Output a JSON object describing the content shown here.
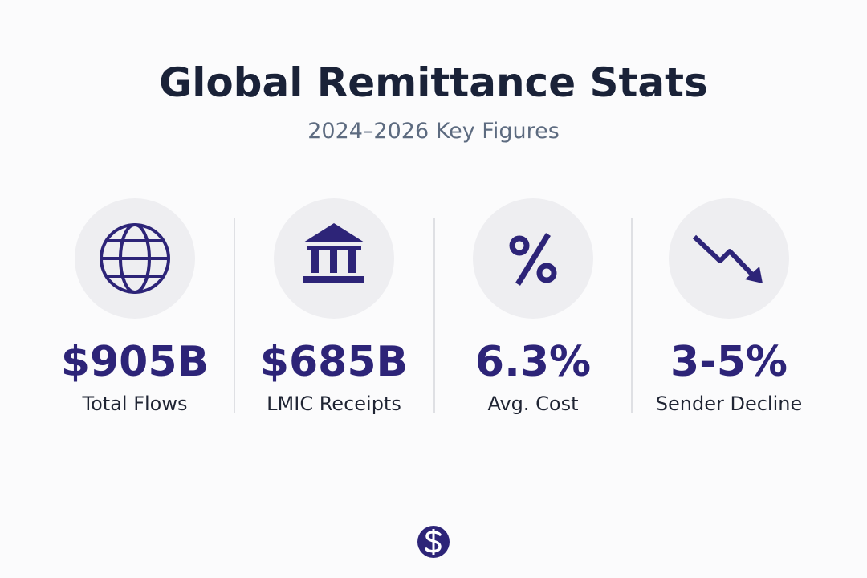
{
  "header": {
    "title": "Global Remittance Stats",
    "subtitle": "2024–2026 Key Figures"
  },
  "stats": [
    {
      "value": "$905B",
      "label": "Total Flows"
    },
    {
      "value": "$685B",
      "label": "LMIC Receipts"
    },
    {
      "value": "6.3%",
      "label": "Avg. Cost"
    },
    {
      "value": "3-5%",
      "label": "Sender Decline"
    }
  ]
}
